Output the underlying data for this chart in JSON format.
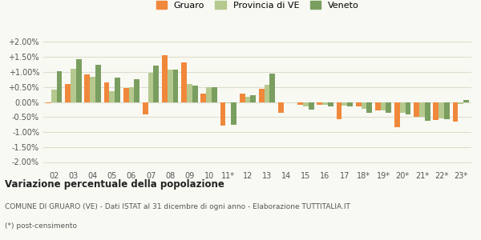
{
  "years": [
    "02",
    "03",
    "04",
    "05",
    "06",
    "07",
    "08",
    "09",
    "10",
    "11*",
    "12",
    "13",
    "14",
    "15",
    "16",
    "17",
    "18*",
    "19*",
    "20*",
    "21*",
    "22*",
    "23*"
  ],
  "gruaro": [
    -0.05,
    0.6,
    0.93,
    0.65,
    0.48,
    -0.42,
    1.55,
    1.32,
    0.27,
    -0.78,
    0.28,
    0.43,
    -0.37,
    -0.1,
    -0.08,
    -0.58,
    -0.15,
    -0.28,
    -0.85,
    -0.5,
    -0.6,
    -0.65
  ],
  "provincia": [
    0.42,
    1.1,
    0.85,
    0.35,
    0.5,
    0.97,
    1.07,
    0.6,
    0.5,
    -0.05,
    0.18,
    0.57,
    0.0,
    -0.15,
    -0.1,
    -0.12,
    -0.22,
    -0.28,
    -0.35,
    -0.5,
    -0.55,
    -0.07
  ],
  "veneto": [
    1.03,
    1.42,
    1.23,
    0.82,
    0.76,
    1.22,
    1.08,
    0.56,
    0.5,
    -0.75,
    0.22,
    0.94,
    0.0,
    -0.25,
    -0.15,
    -0.15,
    -0.35,
    -0.35,
    -0.4,
    -0.62,
    -0.58,
    0.07
  ],
  "color_gruaro": "#f0883c",
  "color_provincia": "#b5c98e",
  "color_veneto": "#7a9e60",
  "title": "Variazione percentuale della popolazione",
  "subtitle": "COMUNE DI GRUARO (VE) - Dati ISTAT al 31 dicembre di ogni anno - Elaborazione TUTTITALIA.IT",
  "footnote": "(*) post-censimento",
  "bg_color": "#f9f9f4",
  "grid_color": "#ddddcc",
  "ylim": [
    -2.2,
    2.2
  ]
}
